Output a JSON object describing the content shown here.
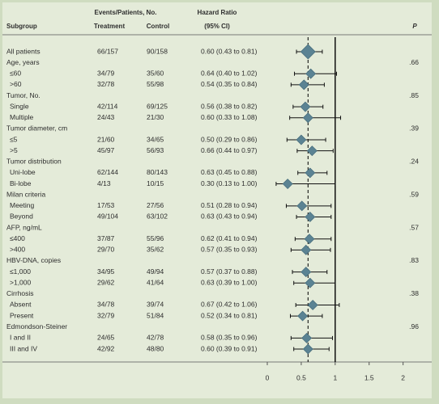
{
  "chart_data": {
    "type": "forest",
    "headers": {
      "events": "Events/Patients, No.",
      "hazard": "Hazard Ratio",
      "subgroup": "Subgroup",
      "treatment": "Treatment",
      "control": "Control",
      "ci": "(95% CI)",
      "p": "P"
    },
    "xlim": [
      0,
      2.35
    ],
    "xticks": [
      0,
      0.5,
      1,
      1.5,
      2
    ],
    "color": "#5b8393",
    "rows": [
      {
        "label": "All patients",
        "treatment": "66/157",
        "control": "90/158",
        "hr_text": "0.60 (0.43 to 0.81)",
        "hr": 0.6,
        "lo": 0.43,
        "hi": 0.81
      },
      {
        "label": "Age, years",
        "p": ".66"
      },
      {
        "label": "≤60",
        "treatment": "34/79",
        "control": "35/60",
        "hr_text": "0.64 (0.40 to 1.02)",
        "hr": 0.64,
        "lo": 0.4,
        "hi": 1.02
      },
      {
        "label": ">60",
        "treatment": "32/78",
        "control": "55/98",
        "hr_text": "0.54 (0.35 to 0.84)",
        "hr": 0.54,
        "lo": 0.35,
        "hi": 0.84
      },
      {
        "label": "Tumor, No.",
        "p": ".85"
      },
      {
        "label": "Single",
        "treatment": "42/114",
        "control": "69/125",
        "hr_text": "0.56 (0.38 to 0.82)",
        "hr": 0.56,
        "lo": 0.38,
        "hi": 0.82
      },
      {
        "label": "Multiple",
        "treatment": "24/43",
        "control": "21/30",
        "hr_text": "0.60 (0.33 to 1.08)",
        "hr": 0.6,
        "lo": 0.33,
        "hi": 1.08
      },
      {
        "label": "Tumor diameter, cm",
        "p": ".39"
      },
      {
        "label": "≤5",
        "treatment": "21/60",
        "control": "34/65",
        "hr_text": "0.50 (0.29 to 0.86)",
        "hr": 0.5,
        "lo": 0.29,
        "hi": 0.86
      },
      {
        "label": ">5",
        "treatment": "45/97",
        "control": "56/93",
        "hr_text": "0.66 (0.44 to 0.97)",
        "hr": 0.66,
        "lo": 0.44,
        "hi": 0.97
      },
      {
        "label": "Tumor distribution",
        "p": ".24"
      },
      {
        "label": "Uni-lobe",
        "treatment": "62/144",
        "control": "80/143",
        "hr_text": "0.63 (0.45 to 0.88)",
        "hr": 0.63,
        "lo": 0.45,
        "hi": 0.88
      },
      {
        "label": "Bi-lobe",
        "treatment": "4/13",
        "control": "10/15",
        "hr_text": "0.30 (0.13 to 1.00)",
        "hr": 0.3,
        "lo": 0.13,
        "hi": 1.0
      },
      {
        "label": "Milan criteria",
        "p": ".59"
      },
      {
        "label": "Meeting",
        "treatment": "17/53",
        "control": "27/56",
        "hr_text": "0.51 (0.28 to 0.94)",
        "hr": 0.51,
        "lo": 0.28,
        "hi": 0.94
      },
      {
        "label": "Beyond",
        "treatment": "49/104",
        "control": "63/102",
        "hr_text": "0.63 (0.43 to 0.94)",
        "hr": 0.63,
        "lo": 0.43,
        "hi": 0.94
      },
      {
        "label": "AFP, ng/mL",
        "p": ".57"
      },
      {
        "label": "≤400",
        "treatment": "37/87",
        "control": "55/96",
        "hr_text": "0.62 (0.41 to 0.94)",
        "hr": 0.62,
        "lo": 0.41,
        "hi": 0.94
      },
      {
        "label": ">400",
        "treatment": "29/70",
        "control": "35/62",
        "hr_text": "0.57 (0.35 to 0.93)",
        "hr": 0.57,
        "lo": 0.35,
        "hi": 0.93
      },
      {
        "label": "HBV-DNA, copies",
        "p": ".83"
      },
      {
        "label": "≤1,000",
        "treatment": "34/95",
        "control": "49/94",
        "hr_text": "0.57 (0.37 to 0.88)",
        "hr": 0.57,
        "lo": 0.37,
        "hi": 0.88
      },
      {
        "label": ">1,000",
        "treatment": "29/62",
        "control": "41/64",
        "hr_text": "0.63 (0.39 to 1.00)",
        "hr": 0.63,
        "lo": 0.39,
        "hi": 1.0
      },
      {
        "label": "Cirrhosis",
        "p": ".38"
      },
      {
        "label": "Absent",
        "treatment": "34/78",
        "control": "39/74",
        "hr_text": "0.67 (0.42 to 1.06)",
        "hr": 0.67,
        "lo": 0.42,
        "hi": 1.06
      },
      {
        "label": "Present",
        "treatment": "32/79",
        "control": "51/84",
        "hr_text": "0.52 (0.34 to 0.81)",
        "hr": 0.52,
        "lo": 0.34,
        "hi": 0.81
      },
      {
        "label": "Edmondson-Steiner",
        "p": ".96"
      },
      {
        "label": "I and II",
        "treatment": "24/65",
        "control": "42/78",
        "hr_text": "0.58 (0.35 to 0.96)",
        "hr": 0.58,
        "lo": 0.35,
        "hi": 0.96
      },
      {
        "label": "III and IV",
        "treatment": "42/92",
        "control": "48/80",
        "hr_text": "0.60 (0.39 to 0.91)",
        "hr": 0.6,
        "lo": 0.39,
        "hi": 0.91
      }
    ]
  }
}
